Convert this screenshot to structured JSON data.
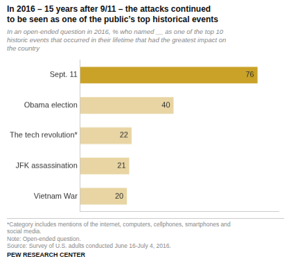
{
  "chart_data": {
    "type": "bar",
    "orientation": "horizontal",
    "title": "In 2016 – 15 years after 9/11 – the attacks continued\nto be seen as one of the public’s top historical events",
    "subtitle": "In an open-ended question in 2016, % who named __ as one of the top 10\nhistoric events that occurred in their lifetime that had the greatest impact on\nthe country",
    "categories": [
      "Vietnam War",
      "JFK assassination",
      "The tech revolution*",
      "Obama election",
      "Sept. 11"
    ],
    "values": [
      20,
      21,
      22,
      40,
      76
    ],
    "colors": [
      "#e8d5a3",
      "#e8d5a3",
      "#e8d5a3",
      "#e8d5a3",
      "#c9a227"
    ],
    "xlim": [
      0,
      85
    ],
    "grid": false,
    "data_labels": true,
    "tick_labels": "y",
    "footnotes": [
      "*Category includes mentions of the internet, computers, cellphones, smartphones and\nsocial media.",
      "Note: Open-ended question.",
      "Source: Survey of U.S. adults conducted June 16-July 4, 2016."
    ],
    "source": "PEW RESEARCH CENTER"
  }
}
